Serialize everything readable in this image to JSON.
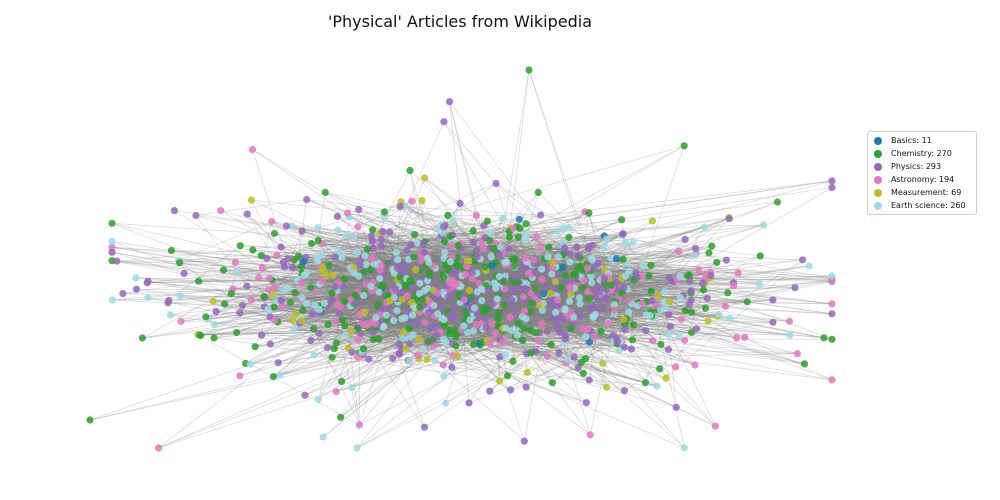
{
  "chart_data": {
    "type": "scatter",
    "title": "'Physical' Articles from Wikipedia",
    "legend_position": "right",
    "grid": false,
    "edge_color": "#808080",
    "categories": [
      {
        "name": "Basics",
        "count": 11,
        "label": "Basics: 11",
        "color": "#1f77b4"
      },
      {
        "name": "Chemistry",
        "count": 270,
        "label": "Chemistry: 270",
        "color": "#2ca02c"
      },
      {
        "name": "Physics",
        "count": 293,
        "label": "Physics: 293",
        "color": "#9467bd"
      },
      {
        "name": "Astronomy",
        "count": 194,
        "label": "Astronomy: 194",
        "color": "#e377c2"
      },
      {
        "name": "Measurement",
        "count": 69,
        "label": "Measurement: 69",
        "color": "#bcbd22"
      },
      {
        "name": "Earth science",
        "count": 260,
        "label": "Earth science: 260",
        "color": "#9edae5"
      }
    ]
  }
}
